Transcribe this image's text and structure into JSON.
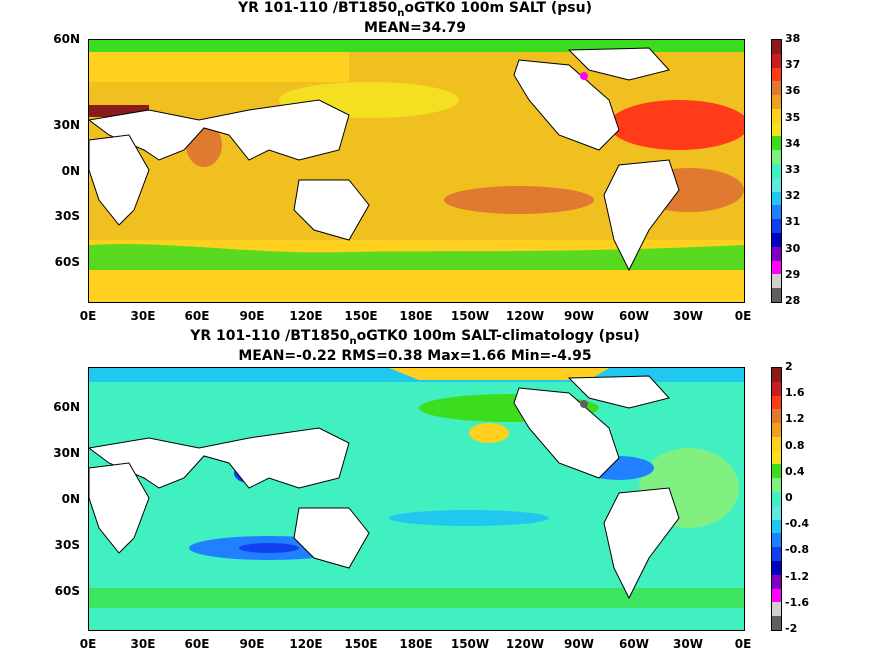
{
  "panels": [
    {
      "title_pre": "YR 101-110 /BT1850",
      "title_sub": "n",
      "title_post": "oGTK0 100m SALT (psu)",
      "stats": "MEAN=34.79",
      "colorbar_labels": [
        "38",
        "37",
        "36",
        "35",
        "34",
        "33",
        "32",
        "31",
        "30",
        "29",
        "28"
      ],
      "colorbar_colors": [
        "#8b1a1a",
        "#c81e1e",
        "#ff3b1a",
        "#e07a30",
        "#f0a020",
        "#ffd020",
        "#f4e020",
        "#3cdc1e",
        "#80f080",
        "#40f0c0",
        "#60e8e0",
        "#20c8f0",
        "#2080ff",
        "#1040f0",
        "#0000c0",
        "#8000c0",
        "#ff00ff",
        "#d0d0d0",
        "#606060"
      ]
    },
    {
      "title_pre": "YR 101-110 /BT1850",
      "title_sub": "n",
      "title_post": "oGTK0 100m SALT-climatology (psu)",
      "stats": "MEAN=-0.22   RMS=0.38   Max=1.66   Min=-4.95",
      "colorbar_labels": [
        "2",
        "1.6",
        "1.2",
        "0.8",
        "0.4",
        "0",
        "-0.4",
        "-0.8",
        "-1.2",
        "-1.6",
        "-2"
      ],
      "colorbar_colors": [
        "#8b1a1a",
        "#c81e1e",
        "#ff3b1a",
        "#e07a30",
        "#f0a020",
        "#ffd020",
        "#f4e020",
        "#3cdc1e",
        "#80f080",
        "#40f0c0",
        "#60e8e0",
        "#20c8f0",
        "#2080ff",
        "#1040f0",
        "#0000c0",
        "#8000c0",
        "#ff00ff",
        "#d0d0d0",
        "#606060"
      ]
    }
  ],
  "lat_labels": [
    "60N",
    "30N",
    "0N",
    "30S",
    "60S"
  ],
  "lon_labels": [
    "0E",
    "30E",
    "60E",
    "90E",
    "120E",
    "150E",
    "180E",
    "150W",
    "120W",
    "90W",
    "60W",
    "30W",
    "0E"
  ]
}
